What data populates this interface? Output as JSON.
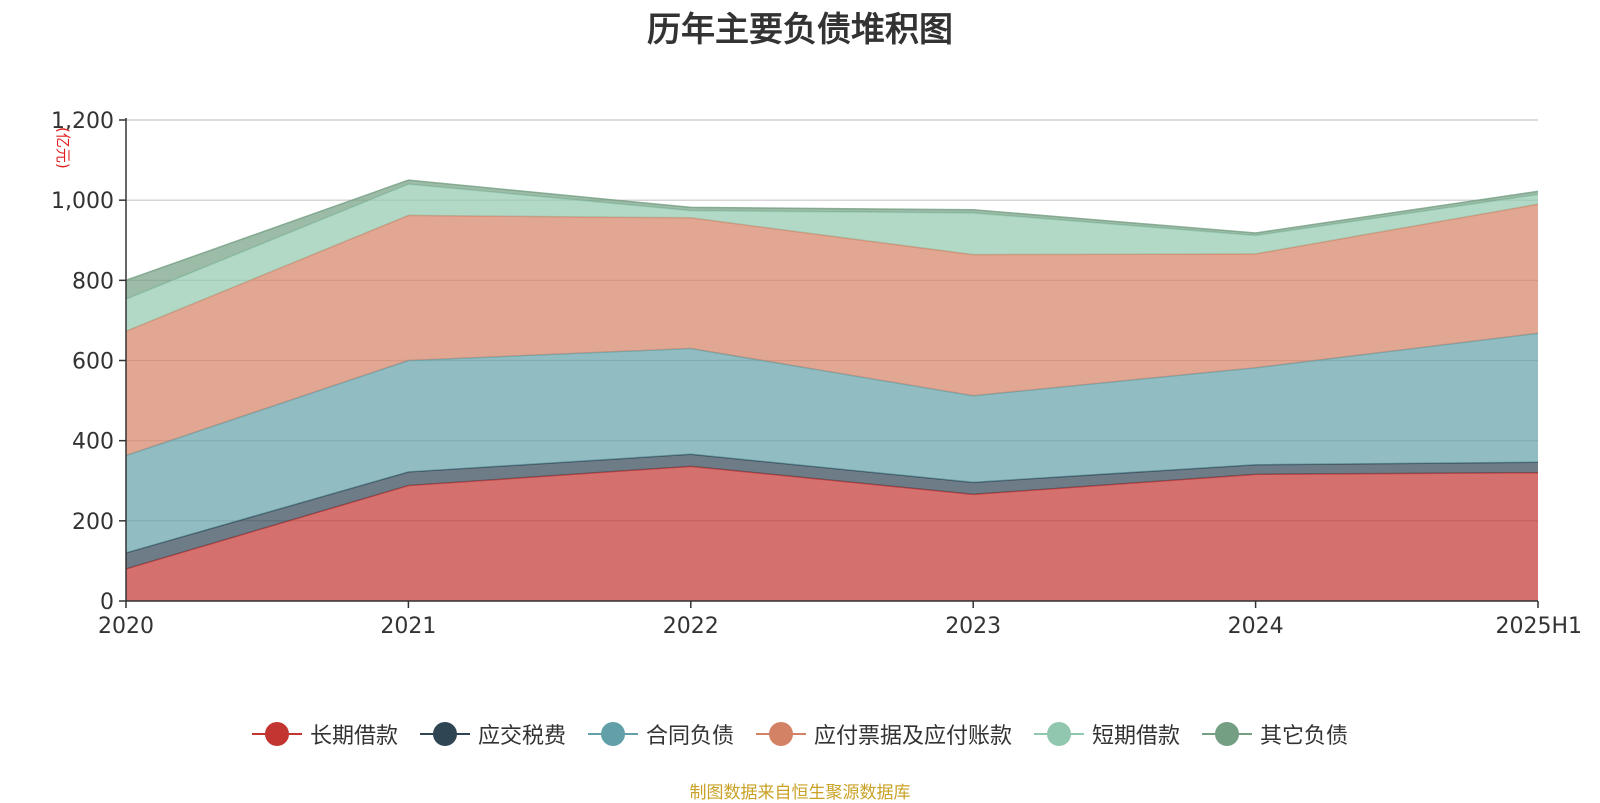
{
  "chart_data": {
    "type": "area",
    "stacked": true,
    "title": "历年主要负债堆积图",
    "unit_label": "(亿元)",
    "categories": [
      "2020",
      "2021",
      "2022",
      "2023",
      "2024",
      "2025H1"
    ],
    "ylim": [
      0,
      1200
    ],
    "yticks": [
      0,
      200,
      400,
      600,
      800,
      1000,
      1200
    ],
    "ytick_labels": [
      "0",
      "200",
      "400",
      "600",
      "800",
      "1,000",
      "1,200"
    ],
    "grid": true,
    "legend_position": "bottom",
    "series": [
      {
        "name": "长期借款",
        "color": "#c23531",
        "values": [
          80,
          288,
          336,
          266,
          316,
          320
        ]
      },
      {
        "name": "应交税费",
        "color": "#2f4554",
        "values": [
          40,
          34,
          30,
          30,
          24,
          26
        ]
      },
      {
        "name": "合同负债",
        "color": "#61a0a8",
        "values": [
          243,
          278,
          264,
          216,
          242,
          322
        ]
      },
      {
        "name": "应付票据及应付账款",
        "color": "#d48265",
        "values": [
          310,
          362,
          326,
          352,
          284,
          322
        ]
      },
      {
        "name": "短期借款",
        "color": "#91c7ae",
        "values": [
          80,
          78,
          18,
          104,
          46,
          24
        ]
      },
      {
        "name": "其它负债",
        "color": "#749f83",
        "values": [
          47,
          10,
          8,
          8,
          6,
          8
        ]
      }
    ],
    "source_note": "制图数据来自恒生聚源数据库"
  }
}
